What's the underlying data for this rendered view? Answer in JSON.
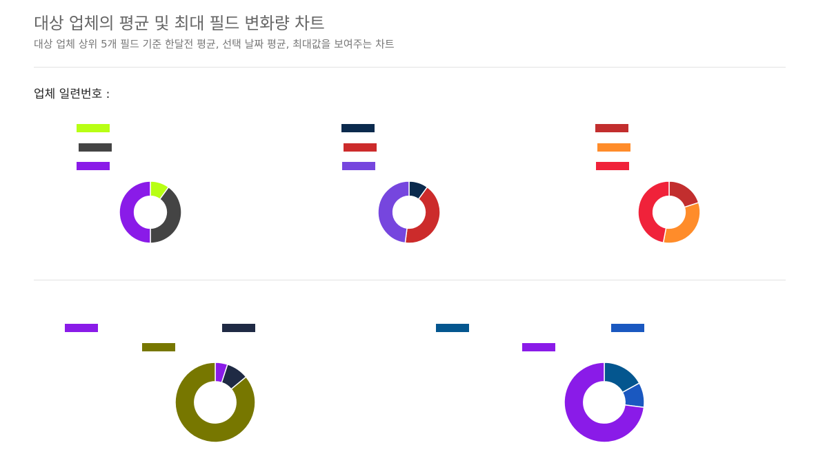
{
  "header": {
    "title": "대상 업체의 평균 및 최대 필드 변화량 차트",
    "subtitle": "대상 업체 상위 5개 필드 기준 한달전 평균, 선택 날짜 평균, 최대값을 보여주는 차트",
    "serial_label": "업체 일련번호 :"
  },
  "chart_data": [
    {
      "type": "pie",
      "hole": true,
      "legend_position": "top-left",
      "series": [
        {
          "color": "#b8ff14",
          "value": 10
        },
        {
          "color": "#444444",
          "value": 40
        },
        {
          "color": "#8a1be8",
          "value": 50
        }
      ]
    },
    {
      "type": "pie",
      "hole": true,
      "legend_position": "top-left",
      "series": [
        {
          "color": "#0b2a4d",
          "value": 10
        },
        {
          "color": "#cc2b2b",
          "value": 42
        },
        {
          "color": "#7646de",
          "value": 48
        }
      ]
    },
    {
      "type": "pie",
      "hole": true,
      "legend_position": "top-left",
      "series": [
        {
          "color": "#c22e2e",
          "value": 20
        },
        {
          "color": "#ff8c2a",
          "value": 33
        },
        {
          "color": "#f0223a",
          "value": 47
        }
      ]
    },
    {
      "type": "pie",
      "hole": true,
      "legend_position": "top",
      "series": [
        {
          "color": "#8a1be8",
          "value": 5
        },
        {
          "color": "#1f2a44",
          "value": 9
        },
        {
          "color": "#777700",
          "value": 86
        }
      ]
    },
    {
      "type": "pie",
      "hole": true,
      "legend_position": "top",
      "series": [
        {
          "color": "#04568f",
          "value": 17
        },
        {
          "color": "#1a58c0",
          "value": 10
        },
        {
          "color": "#8a1be8",
          "value": 73
        }
      ]
    }
  ]
}
